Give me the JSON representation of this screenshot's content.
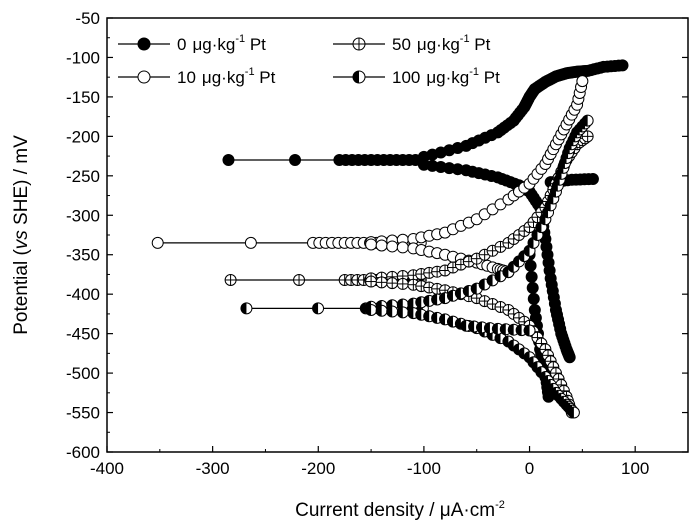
{
  "chart_data": {
    "type": "scatter",
    "xlabel_prefix": "Current density / ",
    "xlabel_mu": "μ",
    "xlabel_unit": "A·cm",
    "xlabel_exp": "-2",
    "ylabel_prefix": "Potential (",
    "ylabel_vs": "vs",
    "ylabel_suffix": " SHE) / mV",
    "xlim": [
      -400,
      150
    ],
    "ylim": [
      -600,
      -50
    ],
    "xticks": [
      "-400",
      "-300",
      "-200",
      "-100",
      "0",
      "100"
    ],
    "yticks": [
      "-50",
      "-100",
      "-150",
      "-200",
      "-250",
      "-300",
      "-350",
      "-400",
      "-450",
      "-500",
      "-550",
      "-600"
    ],
    "legend_position": "top-left",
    "series": [
      {
        "name_value": "0",
        "name_unit": "μg·kg",
        "name_exp": "-1",
        "name_tail": " Pt",
        "marker": "filled-circle",
        "corrosion_potential": -230,
        "tail_start": -285,
        "tail_dense": -180,
        "anodic": [
          [
            -100,
            -226
          ],
          [
            -60,
            -212
          ],
          [
            -30,
            -195
          ],
          [
            -15,
            -180
          ],
          [
            -5,
            -163
          ],
          [
            0,
            -150
          ],
          [
            5,
            -140
          ],
          [
            15,
            -131
          ],
          [
            25,
            -124
          ],
          [
            35,
            -120
          ],
          [
            45,
            -118
          ],
          [
            55,
            -117
          ],
          [
            70,
            -112
          ],
          [
            88,
            -110
          ]
        ],
        "cathodic": [
          [
            -100,
            -236
          ],
          [
            -60,
            -243
          ],
          [
            -30,
            -252
          ],
          [
            -10,
            -262
          ],
          [
            0,
            -270
          ],
          [
            10,
            -290
          ],
          [
            15,
            -330
          ],
          [
            20,
            -380
          ],
          [
            25,
            -420
          ],
          [
            30,
            -450
          ],
          [
            35,
            -470
          ],
          [
            38,
            -480
          ]
        ],
        "cathodic_low": [
          [
            0,
            -350
          ],
          [
            5,
            -420
          ],
          [
            10,
            -470
          ],
          [
            15,
            -500
          ],
          [
            18,
            -530
          ]
        ],
        "side": [
          [
            20,
            -258
          ],
          [
            40,
            -255
          ],
          [
            60,
            -254
          ]
        ]
      },
      {
        "name_value": "10",
        "name_unit": "μg·kg",
        "name_exp": "-1",
        "name_tail": " Pt",
        "marker": "open-circle",
        "corrosion_potential": -335,
        "tail_start": -352,
        "tail_dense": -205,
        "anodic": [
          [
            -150,
            -334
          ],
          [
            -110,
            -330
          ],
          [
            -80,
            -322
          ],
          [
            -50,
            -305
          ],
          [
            -20,
            -280
          ],
          [
            0,
            -260
          ],
          [
            15,
            -235
          ],
          [
            25,
            -210
          ],
          [
            35,
            -185
          ],
          [
            45,
            -160
          ],
          [
            50,
            -130
          ]
        ],
        "cathodic": [
          [
            -150,
            -337
          ],
          [
            -110,
            -342
          ],
          [
            -80,
            -350
          ],
          [
            -50,
            -360
          ],
          [
            -30,
            -368
          ],
          [
            -20,
            -372
          ]
        ],
        "cathodic_low": []
      },
      {
        "name_value": "50",
        "name_unit": "μg·kg",
        "name_exp": "-1",
        "name_tail": " Pt",
        "marker": "cross-circle",
        "corrosion_potential": -382,
        "tail_start": -283,
        "tail_dense": -175,
        "anodic": [
          [
            -150,
            -380
          ],
          [
            -110,
            -376
          ],
          [
            -80,
            -370
          ],
          [
            -50,
            -355
          ],
          [
            -20,
            -335
          ],
          [
            0,
            -315
          ],
          [
            15,
            -290
          ],
          [
            25,
            -260
          ],
          [
            35,
            -230
          ],
          [
            45,
            -210
          ],
          [
            55,
            -200
          ]
        ],
        "cathodic": [
          [
            -150,
            -384
          ],
          [
            -110,
            -388
          ],
          [
            -80,
            -395
          ],
          [
            -50,
            -405
          ],
          [
            -20,
            -420
          ],
          [
            0,
            -440
          ],
          [
            15,
            -470
          ],
          [
            25,
            -500
          ],
          [
            35,
            -530
          ],
          [
            40,
            -550
          ]
        ],
        "cathodic_low": []
      },
      {
        "name_value": "100",
        "name_unit": "μg·kg",
        "name_exp": "-1",
        "name_tail": " Pt",
        "marker": "half-circle",
        "corrosion_potential": -418,
        "tail_start": -268,
        "tail_dense": -155,
        "anodic": [
          [
            -150,
            -416
          ],
          [
            -110,
            -412
          ],
          [
            -80,
            -405
          ],
          [
            -50,
            -393
          ],
          [
            -20,
            -372
          ],
          [
            0,
            -345
          ],
          [
            15,
            -305
          ],
          [
            25,
            -270
          ],
          [
            32,
            -240
          ],
          [
            38,
            -215
          ],
          [
            45,
            -195
          ],
          [
            55,
            -180
          ]
        ],
        "cathodic": [
          [
            -150,
            -420
          ],
          [
            -110,
            -424
          ],
          [
            -80,
            -432
          ],
          [
            -50,
            -443
          ],
          [
            -20,
            -460
          ],
          [
            0,
            -480
          ],
          [
            15,
            -505
          ],
          [
            25,
            -525
          ],
          [
            35,
            -540
          ],
          [
            42,
            -550
          ]
        ],
        "cathodic_low": [],
        "side": [
          [
            -60,
            -440
          ],
          [
            -30,
            -444
          ],
          [
            0,
            -446
          ]
        ]
      }
    ]
  }
}
